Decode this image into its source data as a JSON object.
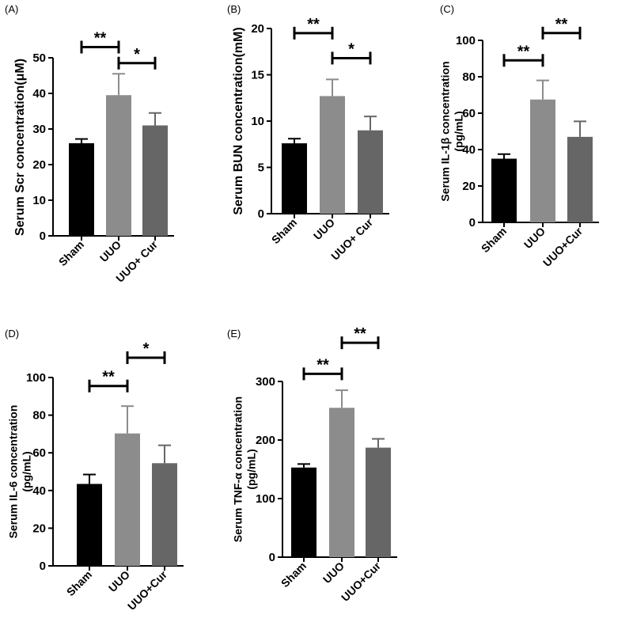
{
  "colors": {
    "Sham": "#000000",
    "UUO": "#8c8c8c",
    "UUO+Cur": "#666666",
    "axis": "#000000"
  },
  "chart_data": [
    {
      "panel": "(A)",
      "type": "bar",
      "ylabel": "Serum Scr concentration(μM)",
      "ylabel_lines": [
        "Serum Scr concentration(μM)"
      ],
      "categories": [
        "Sham",
        "UUO",
        "UUO+ Cur"
      ],
      "values": [
        26,
        39.5,
        31
      ],
      "errors": [
        1.2,
        6,
        3.5
      ],
      "ylim": [
        0,
        50
      ],
      "yticks": [
        0,
        10,
        20,
        30,
        40,
        50
      ],
      "significance": [
        {
          "from": 0,
          "to": 1,
          "label": "**",
          "y": 53
        },
        {
          "from": 1,
          "to": 2,
          "label": "*",
          "y": 48.5
        }
      ]
    },
    {
      "panel": "(B)",
      "type": "bar",
      "ylabel": "Serum BUN concentration(mM)",
      "ylabel_lines": [
        "Serum BUN concentration(mM)"
      ],
      "categories": [
        "Sham",
        "UUO",
        "UUO+ Cur"
      ],
      "values": [
        7.6,
        12.7,
        9
      ],
      "errors": [
        0.5,
        1.8,
        1.5
      ],
      "ylim": [
        0,
        20
      ],
      "yticks": [
        0,
        5,
        10,
        15,
        20
      ],
      "significance": [
        {
          "from": 0,
          "to": 1,
          "label": "**",
          "y": 19.5
        },
        {
          "from": 1,
          "to": 2,
          "label": "*",
          "y": 16.8
        }
      ]
    },
    {
      "panel": "(C)",
      "type": "bar",
      "ylabel": "Serum IL-1β concentration (pg/mL)",
      "ylabel_lines": [
        "Serum IL-1β concentration",
        "(pg/mL)"
      ],
      "categories": [
        "Sham",
        "UUO",
        "UUO+Cur"
      ],
      "values": [
        35,
        67.5,
        47
      ],
      "errors": [
        2.5,
        10.5,
        8.5
      ],
      "ylim": [
        0,
        100
      ],
      "yticks": [
        0,
        20,
        40,
        60,
        80,
        100
      ],
      "significance": [
        {
          "from": 0,
          "to": 1,
          "label": "**",
          "y": 89
        },
        {
          "from": 1,
          "to": 2,
          "label": "**",
          "y": 104
        }
      ]
    },
    {
      "panel": "(D)",
      "type": "bar",
      "ylabel": "Serum IL-6 concentration (pg/mL)",
      "ylabel_lines": [
        "Serum IL-6 concentration",
        "(pg/mL)"
      ],
      "categories": [
        "Sham",
        "UUO",
        "UUO+Cur"
      ],
      "values": [
        43.5,
        70.3,
        54.5
      ],
      "errors": [
        5,
        14.5,
        9.5
      ],
      "ylim": [
        0,
        100
      ],
      "yticks": [
        0,
        20,
        40,
        60,
        80,
        100
      ],
      "significance": [
        {
          "from": 0,
          "to": 1,
          "label": "**",
          "y": 95.5
        },
        {
          "from": 1,
          "to": 2,
          "label": "*",
          "y": 110.5
        }
      ]
    },
    {
      "panel": "(E)",
      "type": "bar",
      "ylabel": "Serum TNF-α concentration (pg/mL)",
      "ylabel_lines": [
        "Serum TNF-α concentration",
        "(pg/mL)"
      ],
      "categories": [
        "Sham",
        "UUO",
        "UUO+Cur"
      ],
      "values": [
        153,
        255,
        187
      ],
      "errors": [
        6,
        30,
        15
      ],
      "ylim": [
        0,
        300
      ],
      "yticks": [
        0,
        100,
        200,
        300
      ],
      "significance": [
        {
          "from": 0,
          "to": 1,
          "label": "**",
          "y": 313
        },
        {
          "from": 1,
          "to": 2,
          "label": "**",
          "y": 366
        }
      ]
    }
  ]
}
